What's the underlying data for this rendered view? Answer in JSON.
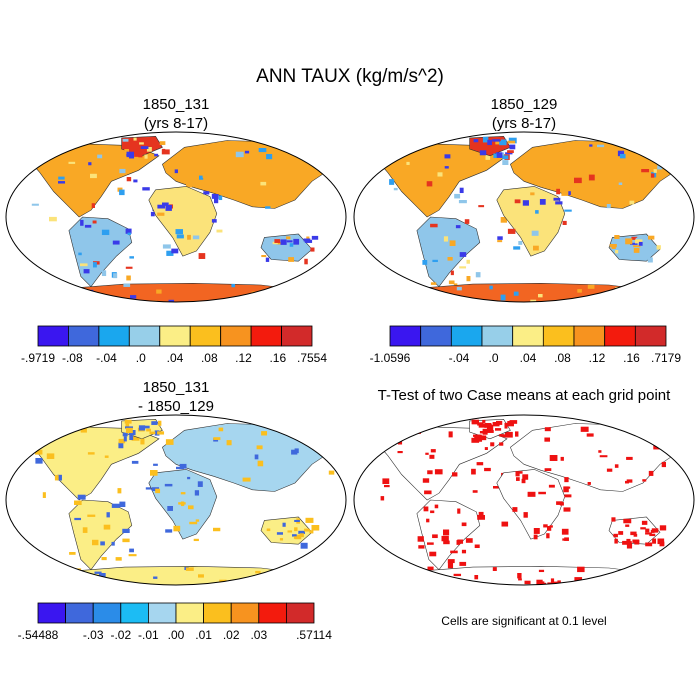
{
  "title": "ANN TAUX (kg/m/s^2)",
  "panels": [
    {
      "id": "case1",
      "title_line1": "1850_131",
      "title_line2": "(yrs 8-17)",
      "style": "field",
      "colorbar": {
        "colors": [
          "#3a16f0",
          "#3f68dc",
          "#1aa7ee",
          "#97cfe9",
          "#fbee86",
          "#fbbf1e",
          "#f7931f",
          "#f31b0d",
          "#d22a2a"
        ],
        "labels": [
          "-.9719",
          "-.08",
          "-.04",
          ".0",
          ".04",
          ".08",
          ".12",
          ".16",
          ".7554"
        ]
      }
    },
    {
      "id": "case2",
      "title_line1": "1850_129",
      "title_line2": "(yrs 8-17)",
      "style": "field",
      "colorbar": {
        "colors": [
          "#3a16f0",
          "#3f68dc",
          "#1aa7ee",
          "#97cfe9",
          "#fbee86",
          "#fbbf1e",
          "#f7931f",
          "#f31b0d",
          "#d22a2a"
        ],
        "labels": [
          "-1.0596",
          "",
          "-.04",
          ".0",
          ".04",
          ".08",
          ".12",
          ".16",
          ".7179"
        ]
      }
    },
    {
      "id": "diff",
      "title_line1": "1850_131",
      "title_line2": "- 1850_129",
      "style": "diff",
      "colorbar": {
        "colors": [
          "#3a16f0",
          "#3f68dc",
          "#2b8ce8",
          "#1cbcf4",
          "#a6d6ef",
          "#fbee86",
          "#fbbf1e",
          "#f7931f",
          "#f31b0d",
          "#d22a2a"
        ],
        "labels": [
          "-.54488",
          "",
          "-.03",
          "-.02",
          "-.01",
          ".00",
          ".01",
          ".02",
          ".03",
          "",
          ".57114"
        ]
      }
    },
    {
      "id": "ttest",
      "title_line1": "T-Test of two Case means at each grid point",
      "title_line2": "",
      "style": "ttest",
      "note": "Cells are significant at 0.1 level"
    }
  ]
}
